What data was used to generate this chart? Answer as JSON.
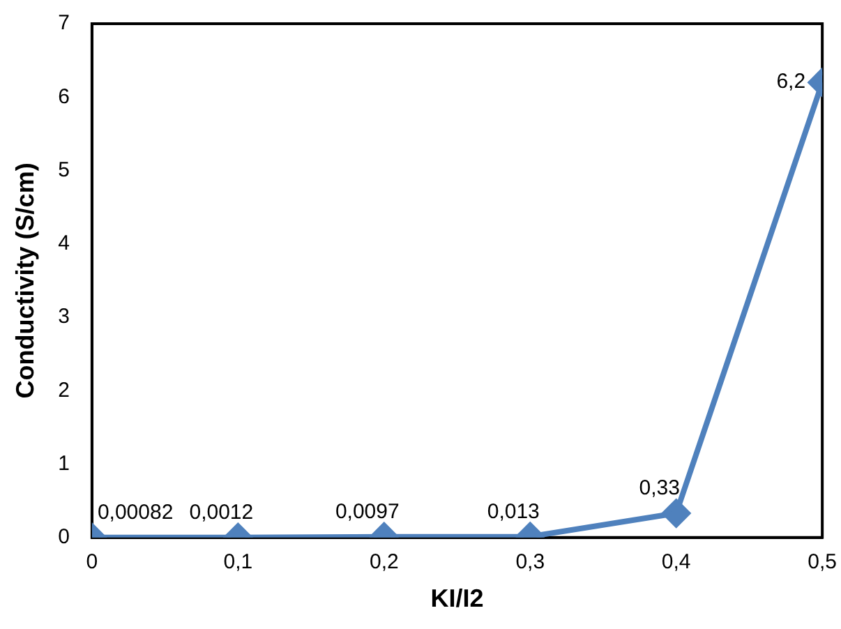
{
  "chart_data": {
    "type": "line",
    "xlabel": "KI/I2",
    "ylabel": "Conductivity (S/cm)",
    "x": [
      0,
      0.1,
      0.2,
      0.3,
      0.4,
      0.5
    ],
    "series": [
      {
        "color": "#4f81bd",
        "values": [
          0.00082,
          0.0012,
          0.0097,
          0.013,
          0.33,
          6.2
        ],
        "value_labels": [
          "0,00082",
          "0,0012",
          "0,0097",
          "0,013",
          "0,33",
          "6,2"
        ]
      }
    ],
    "xlim": [
      0,
      0.5
    ],
    "xticks": [
      0,
      {
        "value": 0.1,
        "label": "0,1"
      },
      {
        "value": 0.2,
        "label": "0,2"
      },
      {
        "value": 0.3,
        "label": "0,3"
      },
      {
        "value": 0.4,
        "label": "0,4"
      },
      {
        "value": 0.5,
        "label": "0,5"
      }
    ],
    "ylim": [
      0,
      7
    ],
    "yticks": [
      0,
      1,
      2,
      3,
      4,
      5,
      6,
      7
    ],
    "grid": false,
    "legend": false,
    "marker": "diamond",
    "line_style": "solid"
  }
}
